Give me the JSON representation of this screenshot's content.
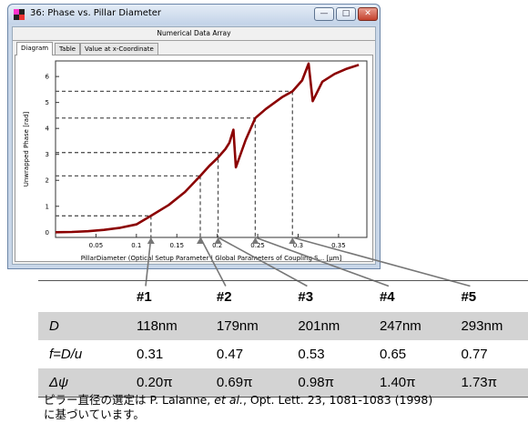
{
  "window": {
    "title": "36: Phase vs. Pillar Diameter",
    "subtitle": "Numerical Data Array",
    "tabs": [
      "Diagram",
      "Table",
      "Value at x-Coordinate"
    ],
    "active_tab": "Diagram",
    "controls": [
      "minimize",
      "maximize",
      "close"
    ]
  },
  "chart_data": {
    "type": "line",
    "xlabel": "PillarDiameter (Optical Setup Parameter | Global Parameters of Coupling S... [µm]",
    "ylabel": "Unwrapped Phase [rad]",
    "x_ticks": [
      "0.05",
      "0.1",
      "0.15",
      "0.2",
      "0.25",
      "0.3",
      "0.35"
    ],
    "y_ticks": [
      "0",
      "1",
      "2",
      "3",
      "4",
      "5",
      "6"
    ],
    "xlim": [
      0,
      0.385
    ],
    "ylim": [
      -0.2,
      6.6
    ],
    "grid": false,
    "line_color": "#8b0000",
    "guide_color": "#555555",
    "series": [
      {
        "points": [
          [
            0,
            0
          ],
          [
            0.02,
            0.01
          ],
          [
            0.04,
            0.04
          ],
          [
            0.06,
            0.09
          ],
          [
            0.08,
            0.17
          ],
          [
            0.1,
            0.3
          ],
          [
            0.118,
            0.63
          ],
          [
            0.14,
            1.05
          ],
          [
            0.16,
            1.55
          ],
          [
            0.179,
            2.17
          ],
          [
            0.19,
            2.55
          ],
          [
            0.2,
            2.85
          ],
          [
            0.21,
            3.2
          ],
          [
            0.215,
            3.45
          ],
          [
            0.22,
            3.95
          ],
          [
            0.223,
            2.5
          ],
          [
            0.235,
            3.55
          ],
          [
            0.247,
            4.4
          ],
          [
            0.26,
            4.75
          ],
          [
            0.28,
            5.2
          ],
          [
            0.293,
            5.43
          ],
          [
            0.305,
            5.85
          ],
          [
            0.313,
            6.5
          ],
          [
            0.318,
            5.05
          ],
          [
            0.33,
            5.8
          ],
          [
            0.345,
            6.1
          ],
          [
            0.36,
            6.3
          ],
          [
            0.375,
            6.45
          ]
        ]
      }
    ],
    "markers": [
      {
        "label": "#1",
        "x": 0.118,
        "y": 0.63
      },
      {
        "label": "#2",
        "x": 0.179,
        "y": 2.17
      },
      {
        "label": "#3",
        "x": 0.201,
        "y": 3.07
      },
      {
        "label": "#4",
        "x": 0.247,
        "y": 4.4
      },
      {
        "label": "#5",
        "x": 0.293,
        "y": 5.43
      }
    ]
  },
  "table": {
    "headers": [
      "",
      "#1",
      "#2",
      "#3",
      "#4",
      "#5"
    ],
    "rows": [
      {
        "label": "D",
        "values": [
          "118nm",
          "179nm",
          "201nm",
          "247nm",
          "293nm"
        ]
      },
      {
        "label": "f=D/u",
        "values": [
          "0.31",
          "0.47",
          "0.53",
          "0.65",
          "0.77"
        ]
      },
      {
        "label": "Δψ",
        "values": [
          "0.20π",
          "0.69π",
          "0.98π",
          "1.40π",
          "1.73π"
        ]
      }
    ]
  },
  "note": {
    "prefix": "ピラー直径の選定は P. Lalanne, ",
    "italic": "et al.",
    "suffix": ", Opt. Lett. 23, 1081-1083 (1998)",
    "line2": "に基づいています。"
  }
}
